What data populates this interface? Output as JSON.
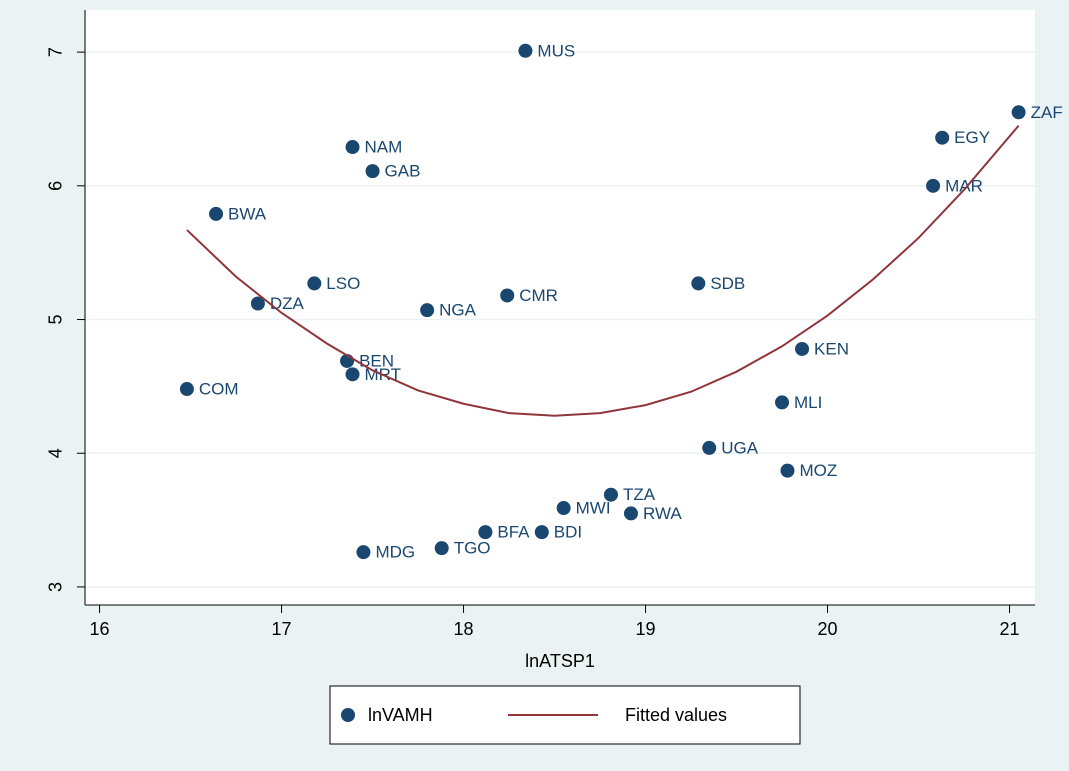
{
  "chart_data": {
    "type": "scatter",
    "xlabel": "lnATSP1",
    "xlim": [
      15.92,
      21.14
    ],
    "xticks": [
      16,
      17,
      18,
      19,
      20,
      21
    ],
    "ylim": [
      2.865,
      7.315
    ],
    "yticks": [
      3,
      4,
      5,
      6,
      7
    ],
    "grid": true,
    "legend": "bottom",
    "series": [
      {
        "name": "lnVAMH",
        "type": "scatter",
        "color": "#1a476f",
        "labels": [
          "MUS",
          "NAM",
          "GAB",
          "BWA",
          "LSO",
          "DZA",
          "NGA",
          "CMR",
          "SDB",
          "BEN",
          "MRT",
          "COM",
          "KEN",
          "MLI",
          "UGA",
          "MOZ",
          "TZA",
          "MWI",
          "RWA",
          "BFA",
          "BDI",
          "TGO",
          "MDG",
          "ZAF",
          "EGY",
          "MAR"
        ],
        "x": [
          18.34,
          17.39,
          17.5,
          16.64,
          17.18,
          16.87,
          17.8,
          18.24,
          19.29,
          17.36,
          17.39,
          16.48,
          19.86,
          19.75,
          19.35,
          19.78,
          18.81,
          18.55,
          18.92,
          18.12,
          18.43,
          17.88,
          17.45,
          21.05,
          20.63,
          20.58
        ],
        "values": [
          7.01,
          6.29,
          6.11,
          5.79,
          5.27,
          5.12,
          5.07,
          5.18,
          5.27,
          4.69,
          4.59,
          4.48,
          4.78,
          4.38,
          4.04,
          3.87,
          3.69,
          3.59,
          3.55,
          3.41,
          3.41,
          3.29,
          3.26,
          6.55,
          6.36,
          6.0
        ]
      },
      {
        "name": "Fitted values",
        "type": "line",
        "color": "#90353b",
        "x": [
          16.48,
          16.75,
          17.0,
          17.25,
          17.5,
          17.75,
          18.0,
          18.25,
          18.5,
          18.75,
          19.0,
          19.25,
          19.5,
          19.75,
          20.0,
          20.25,
          20.5,
          20.75,
          21.05
        ],
        "values": [
          5.67,
          5.32,
          5.05,
          4.82,
          4.62,
          4.47,
          4.37,
          4.3,
          4.28,
          4.3,
          4.36,
          4.46,
          4.61,
          4.8,
          5.03,
          5.3,
          5.61,
          5.97,
          6.45
        ]
      }
    ]
  }
}
